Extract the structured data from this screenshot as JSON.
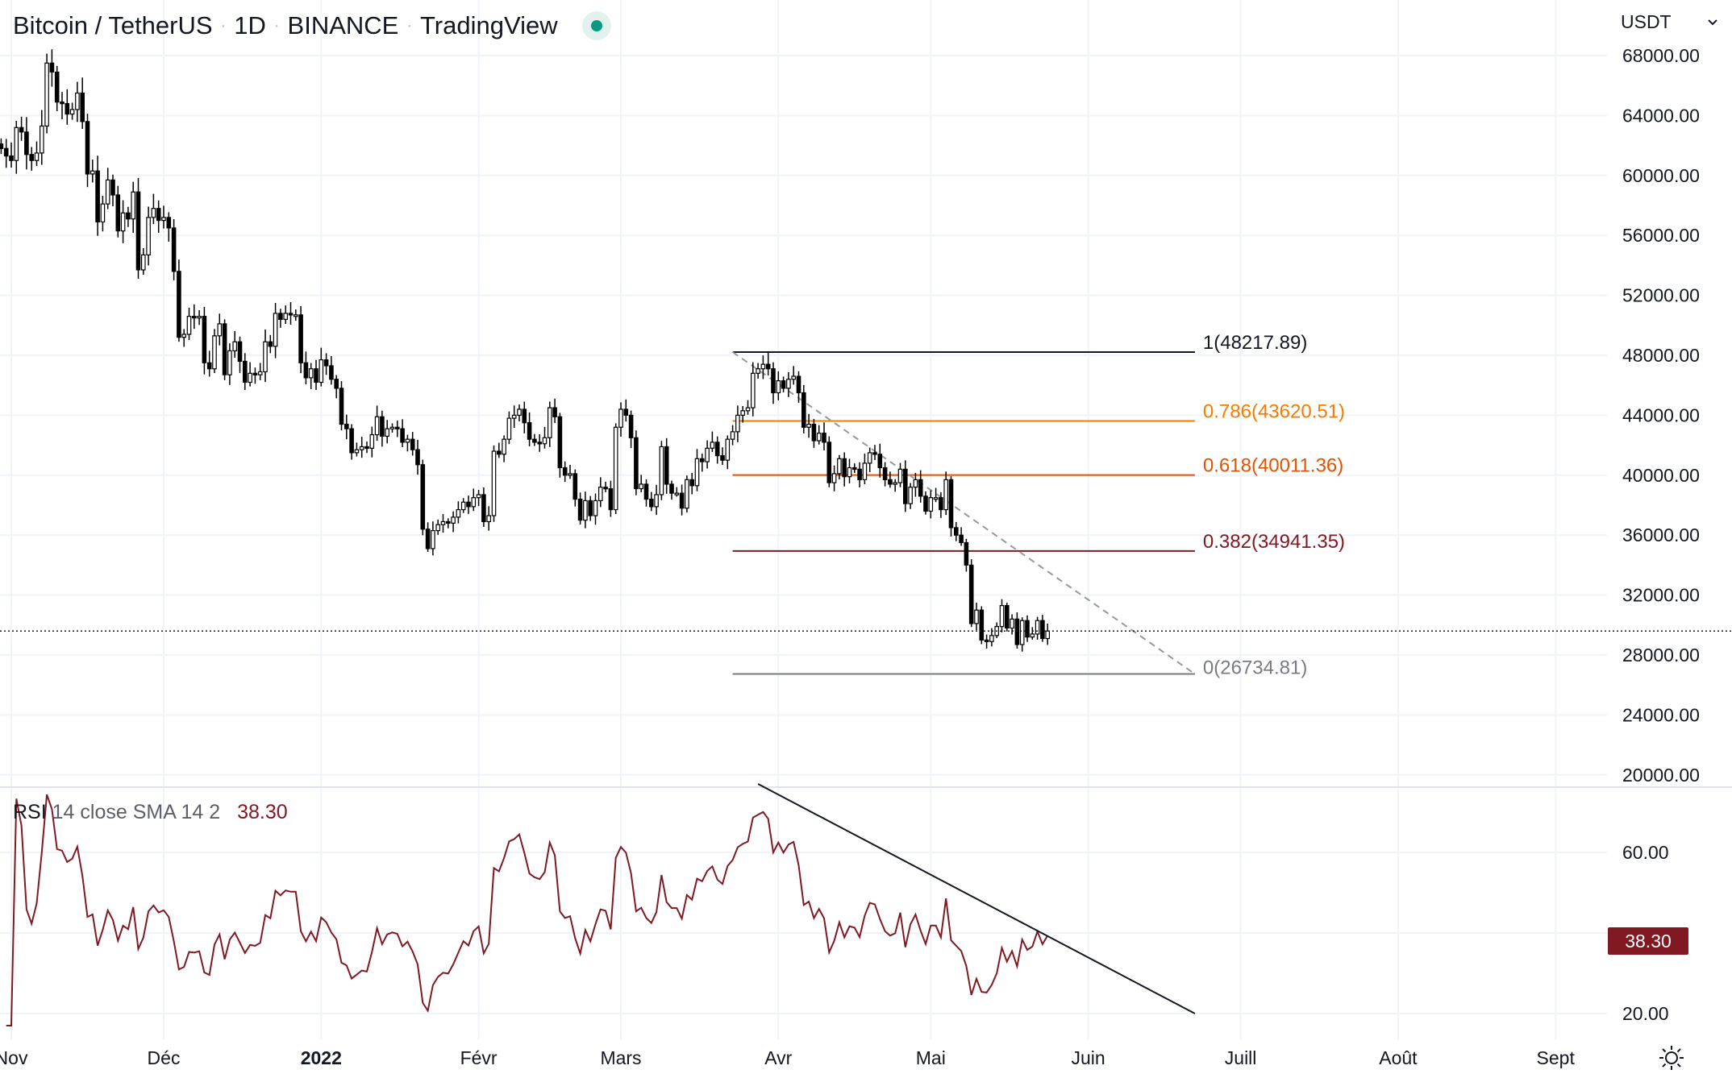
{
  "header": {
    "symbol": "Bitcoin / TetherUS",
    "interval": "1D",
    "exchange": "BINANCE",
    "source": "TradingView",
    "status_color": "#089981"
  },
  "currency_selector": {
    "label": "USDT"
  },
  "rsi_legend": {
    "name": "RSI",
    "params": "14 close SMA 14 2",
    "value": "38.30"
  },
  "rsi_badge": "38.30",
  "chart_data": [
    {
      "type": "candlestick",
      "title": "Bitcoin / TetherUS · 1D · BINANCE",
      "start_date": "2021-10-30",
      "closes": [
        61800,
        61300,
        61000,
        63200,
        62900,
        61400,
        61000,
        61500,
        63300,
        67500,
        66900,
        64900,
        64800,
        64100,
        64400,
        65500,
        63600,
        60100,
        60300,
        56900,
        58100,
        59700,
        58700,
        56300,
        57500,
        57100,
        58900,
        53700,
        54700,
        57200,
        57800,
        57000,
        57200,
        56500,
        53600,
        49200,
        49400,
        50600,
        50500,
        50600,
        47500,
        47100,
        49300,
        50100,
        46700,
        48300,
        48900,
        47600,
        46200,
        46800,
        46700,
        46900,
        48900,
        48600,
        50800,
        50400,
        50800,
        50700,
        50700,
        47500,
        46500,
        47100,
        46200,
        47700,
        47300,
        46400,
        45800,
        43400,
        43100,
        41500,
        41700,
        41900,
        41800,
        42700,
        43900,
        42600,
        43100,
        43200,
        43100,
        42200,
        42400,
        41700,
        40700,
        36400,
        35100,
        36300,
        36700,
        36900,
        36800,
        37200,
        37700,
        38200,
        37900,
        38500,
        38700,
        36900,
        37300,
        41600,
        41400,
        42400,
        43800,
        44000,
        44400,
        43500,
        42400,
        42200,
        42100,
        42500,
        44500,
        43900,
        40500,
        40000,
        40100,
        38400,
        37000,
        38300,
        37300,
        38300,
        39200,
        39100,
        37700,
        43200,
        44400,
        44000,
        42500,
        39100,
        39400,
        38400,
        37900,
        38700,
        41900,
        39400,
        38800,
        38800,
        37800,
        39700,
        39300,
        41100,
        40900,
        41800,
        42200,
        41300,
        41000,
        42400,
        42900,
        44000,
        44300,
        44500,
        46800,
        47100,
        47400,
        47100,
        45500,
        46300,
        45800,
        46400,
        46600,
        45500,
        43200,
        43400,
        42300,
        42800,
        42200,
        39500,
        40100,
        41100,
        39900,
        40500,
        40400,
        39700,
        40800,
        41500,
        41400,
        40500,
        39700,
        39400,
        39500,
        40400,
        38100,
        39200,
        39700,
        38600,
        37600,
        38500,
        38500,
        37700,
        39700,
        36500,
        36000,
        35500,
        34000,
        30100,
        31000,
        29000,
        28900,
        29300,
        29900,
        31300,
        29800,
        30400,
        28700,
        30300,
        29200,
        29400,
        30300,
        29100,
        29600
      ],
      "last_price": 29600,
      "y_ticks": [
        "68000.00",
        "64000.00",
        "60000.00",
        "56000.00",
        "52000.00",
        "48000.00",
        "44000.00",
        "40000.00",
        "36000.00",
        "32000.00",
        "28000.00",
        "24000.00",
        "20000.00"
      ],
      "y_tick_values": [
        68000,
        64000,
        60000,
        56000,
        52000,
        48000,
        44000,
        40000,
        36000,
        32000,
        28000,
        24000,
        20000
      ],
      "x_ticks": [
        {
          "label": "Nov",
          "date": "2021-11-01"
        },
        {
          "label": "Déc",
          "date": "2021-12-01"
        },
        {
          "label": "2022",
          "date": "2022-01-01",
          "bold": true
        },
        {
          "label": "Févr",
          "date": "2022-02-01"
        },
        {
          "label": "Mars",
          "date": "2022-03-01"
        },
        {
          "label": "Avr",
          "date": "2022-04-01"
        },
        {
          "label": "Mai",
          "date": "2022-05-01"
        },
        {
          "label": "Juin",
          "date": "2022-06-01"
        },
        {
          "label": "Juill",
          "date": "2022-07-01"
        },
        {
          "label": "Août",
          "date": "2022-08-01"
        },
        {
          "label": "Sept",
          "date": "2022-09-01"
        }
      ],
      "fibonacci": {
        "start_date": "2022-03-23",
        "end_date": "2022-06-22",
        "levels": [
          {
            "label": "1(48217.89)",
            "price": 48217.89,
            "color": "#131722"
          },
          {
            "label": "0.786(43620.51)",
            "price": 43620.51,
            "color": "#f57c00"
          },
          {
            "label": "0.618(40011.36)",
            "price": 40011.36,
            "color": "#e65100"
          },
          {
            "label": "0.382(34941.35)",
            "price": 34941.35,
            "color": "#801922"
          },
          {
            "label": "0(26734.81)",
            "price": 26734.81,
            "color": "#787b86"
          }
        ]
      },
      "trendline": {
        "from": {
          "date": "2022-03-23",
          "price": 48217.89
        },
        "to": {
          "date": "2022-06-22",
          "price": 26734.81
        },
        "style": "dashed"
      }
    },
    {
      "type": "line",
      "title": "RSI 14 close",
      "y_ticks": [
        "60.00",
        "20.00"
      ],
      "y_tick_values": [
        60,
        20
      ],
      "ylim": [
        14,
        82
      ],
      "series_color": "#801922",
      "trendline": {
        "from": {
          "date": "2022-03-28",
          "value": 77
        },
        "to": {
          "date": "2022-06-22",
          "value": 20
        }
      }
    }
  ]
}
